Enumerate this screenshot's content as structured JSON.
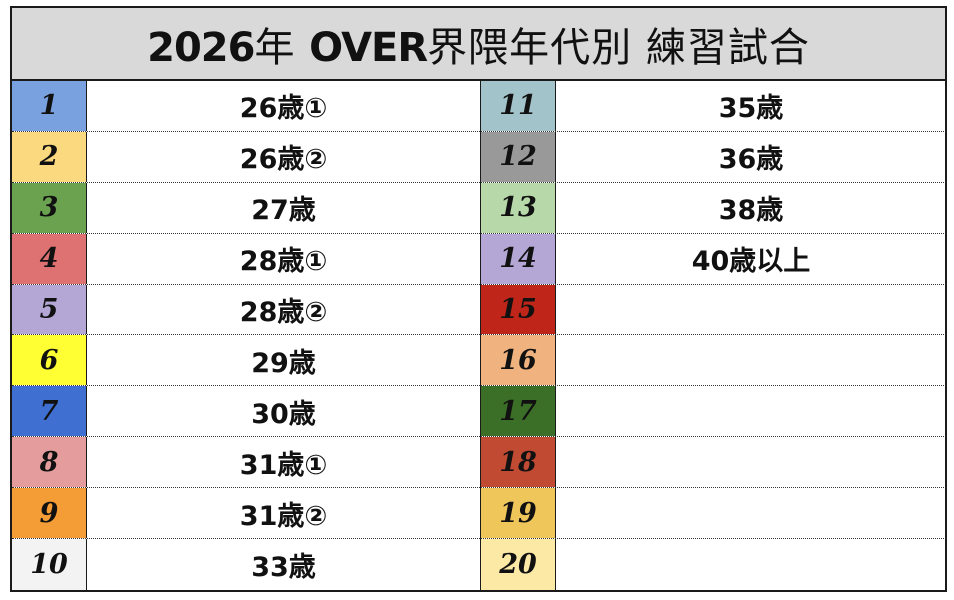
{
  "title": {
    "year_bold": "2026",
    "part1": "年 ",
    "over_bold": "OVER",
    "part2": "界隈年代別 練習試合"
  },
  "left_rows": [
    {
      "num": "1",
      "label": "26歳①",
      "color": "#7aa1df"
    },
    {
      "num": "2",
      "label": "26歳②",
      "color": "#fad97f"
    },
    {
      "num": "3",
      "label": "27歳",
      "color": "#6aa24f"
    },
    {
      "num": "4",
      "label": "28歳①",
      "color": "#de7171"
    },
    {
      "num": "5",
      "label": "28歳②",
      "color": "#b4a7d6"
    },
    {
      "num": "6",
      "label": "29歳",
      "color": "#ffff33"
    },
    {
      "num": "7",
      "label": "30歳",
      "color": "#3f6fd1"
    },
    {
      "num": "8",
      "label": "31歳①",
      "color": "#e49c9c"
    },
    {
      "num": "9",
      "label": "31歳②",
      "color": "#f49d36"
    },
    {
      "num": "10",
      "label": "33歳",
      "color": "#f3f3f3"
    }
  ],
  "right_rows": [
    {
      "num": "11",
      "label": "35歳",
      "color": "#a3c3cb"
    },
    {
      "num": "12",
      "label": "36歳",
      "color": "#999999"
    },
    {
      "num": "13",
      "label": "38歳",
      "color": "#b7d8a8"
    },
    {
      "num": "14",
      "label": "40歳以上",
      "color": "#b4a7d6"
    },
    {
      "num": "15",
      "label": "",
      "color": "#bf2619"
    },
    {
      "num": "16",
      "label": "",
      "color": "#f0b27e"
    },
    {
      "num": "17",
      "label": "",
      "color": "#3b6e26"
    },
    {
      "num": "18",
      "label": "",
      "color": "#c14a33"
    },
    {
      "num": "19",
      "label": "",
      "color": "#efc65a"
    },
    {
      "num": "20",
      "label": "",
      "color": "#fde9a6"
    }
  ]
}
